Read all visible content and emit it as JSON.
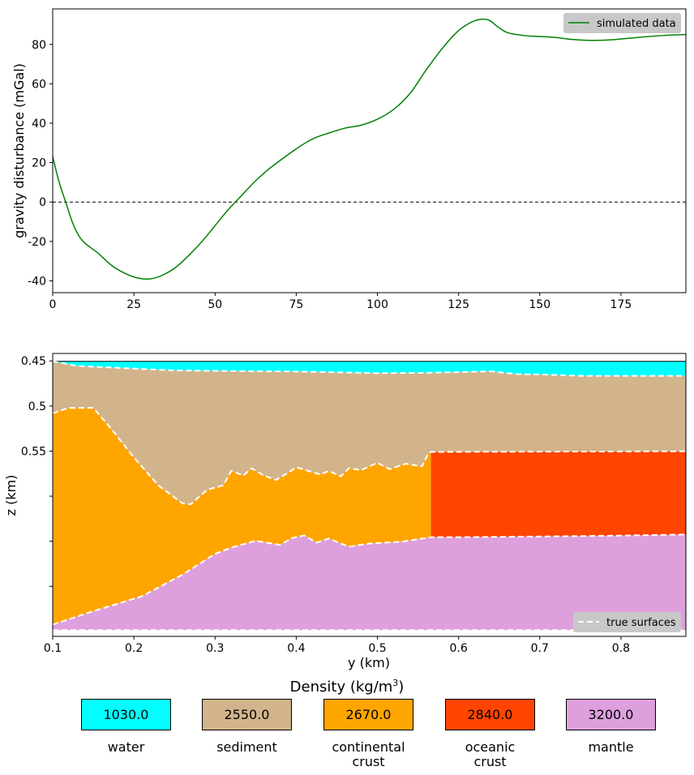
{
  "chart_data": [
    {
      "type": "line",
      "xlabel": "",
      "ylabel": "gravity disturbance (mGal)",
      "xlim": [
        0,
        195
      ],
      "ylim": [
        -46,
        98
      ],
      "xticks": [
        "0",
        "25",
        "50",
        "75",
        "100",
        "125",
        "150",
        "175"
      ],
      "xtick_values": [
        0,
        25,
        50,
        75,
        100,
        125,
        150,
        175
      ],
      "yticks": [
        "-40",
        "-20",
        "0",
        "20",
        "40",
        "60",
        "80"
      ],
      "ytick_values": [
        -40,
        -20,
        0,
        20,
        40,
        60,
        80
      ],
      "reference_line": 0,
      "legend": {
        "position": "top-right",
        "entries": [
          "simulated data"
        ]
      },
      "series": [
        {
          "name": "simulated data",
          "color": "#008000",
          "x": [
            0,
            2,
            4,
            6,
            8,
            10,
            14,
            18,
            22,
            26,
            30,
            34,
            38,
            42,
            46,
            50,
            54,
            58,
            62,
            66,
            70,
            75,
            80,
            85,
            90,
            95,
            100,
            105,
            110,
            115,
            120,
            125,
            130,
            134,
            137,
            140,
            145,
            150,
            155,
            160,
            166,
            172,
            180,
            188,
            195
          ],
          "y": [
            23,
            10,
            0,
            -10,
            -17,
            -21,
            -26,
            -32,
            -36,
            -38.5,
            -39,
            -37,
            -33,
            -27,
            -20,
            -12,
            -4,
            3,
            10,
            16,
            21,
            27,
            32,
            35,
            37.5,
            39,
            42,
            47,
            55,
            67,
            78,
            87,
            92,
            92.5,
            89,
            86,
            84.5,
            84,
            83.5,
            82.5,
            82,
            82.3,
            83.5,
            84.5,
            85
          ]
        }
      ]
    },
    {
      "type": "area",
      "xlabel": "y (km)",
      "ylabel": "z (km)",
      "xlim": [
        0.1,
        0.88
      ],
      "ylim": [
        0.7555,
        0.4417
      ],
      "xticks": [
        "0.1",
        "0.2",
        "0.3",
        "0.4",
        "0.5",
        "0.6",
        "0.7",
        "0.8"
      ],
      "xtick_values": [
        0.1,
        0.2,
        0.3,
        0.4,
        0.5,
        0.6,
        0.7,
        0.8
      ],
      "yticks": [
        "0.45",
        "0.5",
        "0.55",
        "",
        "",
        ""
      ],
      "ytick_values": [
        0.45,
        0.5,
        0.55,
        0.6,
        0.65,
        0.7
      ],
      "legend": {
        "position": "lower-right",
        "entries": [
          "true surfaces"
        ]
      },
      "layers": [
        {
          "name": "water",
          "color": "#00ffff"
        },
        {
          "name": "sediment",
          "color": "#d2b48c"
        },
        {
          "name": "continental crust",
          "color": "#ffa500"
        },
        {
          "name": "oceanic crust",
          "color": "#ff4500"
        },
        {
          "name": "mantle",
          "color": "#dda0dd"
        }
      ],
      "surfaces": {
        "top": {
          "x": [
            0.1,
            0.88
          ],
          "z": [
            0.4505,
            0.4505
          ]
        },
        "seafloor": {
          "x": [
            0.1,
            0.13,
            0.2,
            0.25,
            0.3,
            0.4,
            0.5,
            0.56,
            0.64,
            0.67,
            0.7,
            0.75,
            0.8,
            0.88
          ],
          "z": [
            0.4505,
            0.4555,
            0.4585,
            0.4605,
            0.461,
            0.4617,
            0.4635,
            0.4632,
            0.4615,
            0.4645,
            0.465,
            0.4665,
            0.4665,
            0.4665
          ]
        },
        "basement": {
          "x": [
            0.1,
            0.12,
            0.15,
            0.17,
            0.2,
            0.23,
            0.26,
            0.27,
            0.29,
            0.31,
            0.32,
            0.335,
            0.345,
            0.36,
            0.375,
            0.39,
            0.4,
            0.415,
            0.43,
            0.44,
            0.455,
            0.465,
            0.48,
            0.5,
            0.515,
            0.535,
            0.555,
            0.563,
            0.566
          ],
          "z": [
            0.508,
            0.502,
            0.502,
            0.523,
            0.557,
            0.588,
            0.608,
            0.609,
            0.593,
            0.588,
            0.572,
            0.577,
            0.569,
            0.577,
            0.582,
            0.574,
            0.568,
            0.572,
            0.576,
            0.572,
            0.578,
            0.569,
            0.571,
            0.563,
            0.57,
            0.564,
            0.567,
            0.552,
            0.551
          ]
        },
        "oceanic_crust_top": {
          "x": [
            0.566,
            0.6,
            0.7,
            0.8,
            0.88
          ],
          "z": [
            0.551,
            0.5508,
            0.5506,
            0.5504,
            0.5502
          ]
        },
        "moho": {
          "x": [
            0.1,
            0.15,
            0.21,
            0.26,
            0.3,
            0.32,
            0.35,
            0.38,
            0.395,
            0.41,
            0.425,
            0.44,
            0.465,
            0.49,
            0.53,
            0.566,
            0.6,
            0.7,
            0.8,
            0.88
          ],
          "z": [
            0.7425,
            0.7275,
            0.711,
            0.687,
            0.664,
            0.657,
            0.6495,
            0.654,
            0.6465,
            0.6435,
            0.6515,
            0.647,
            0.656,
            0.6525,
            0.6505,
            0.6455,
            0.6455,
            0.6447,
            0.6437,
            0.6425
          ]
        },
        "bottom": {
          "x": [
            0.1,
            0.88
          ],
          "z": [
            0.7485,
            0.7485
          ]
        }
      }
    }
  ],
  "density_panel": {
    "title_prefix": "Density (kg/m",
    "title_sup": "3",
    "title_suffix": ")",
    "items": [
      {
        "value": "1030.0",
        "label": "water",
        "color": "#00ffff"
      },
      {
        "value": "2550.0",
        "label": "sediment",
        "color": "#d2b48c"
      },
      {
        "value": "2670.0",
        "label": "continental\ncrust",
        "color": "#ffa500"
      },
      {
        "value": "2840.0",
        "label": "oceanic\ncrust",
        "color": "#ff4500"
      },
      {
        "value": "3200.0",
        "label": "mantle",
        "color": "#dda0dd"
      }
    ]
  }
}
